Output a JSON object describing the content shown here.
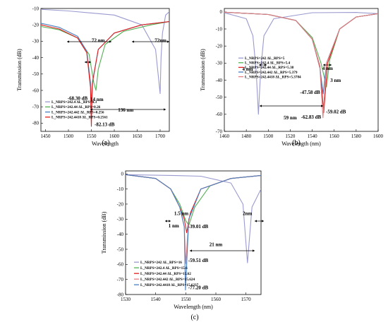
{
  "chart_data": [
    {
      "panel": "(a)",
      "type": "line",
      "xlabel": "Wavelength",
      "ylabel": "Transmission (dB)",
      "xlim": [
        1440,
        1720
      ],
      "ylim": [
        -85,
        -10
      ],
      "xticks": [
        1450,
        1500,
        1550,
        1600,
        1650,
        1700
      ],
      "yticks": [
        -10,
        -20,
        -30,
        -40,
        -50,
        -60,
        -70,
        -80
      ],
      "series": [
        {
          "name": "L_NRPS=242.4   ΔL_RPS=0.3",
          "color": "#9a9ad0",
          "x": [
            1440,
            1500,
            1600,
            1660,
            1690,
            1700,
            1702,
            1705,
            1712,
            1720
          ],
          "y": [
            -10.5,
            -11.5,
            -14,
            -20,
            -35,
            -62,
            -40,
            -25,
            -14,
            -12
          ]
        },
        {
          "name": "L_NRPS=242.44  ΔL_RPS=0.26",
          "color": "#55b055",
          "x": [
            1440,
            1480,
            1520,
            1545,
            1555,
            1560,
            1565,
            1580,
            1620,
            1680,
            1720
          ],
          "y": [
            -21,
            -23,
            -28,
            -38,
            -55,
            -60,
            -47,
            -32,
            -24,
            -20,
            -18
          ]
        },
        {
          "name": "L_NRPS=242.442 ΔL_RPS=0.256",
          "color": "#4a7ec0",
          "x": [
            1440,
            1480,
            1520,
            1540,
            1548,
            1550.5,
            1553,
            1565,
            1600,
            1660,
            1720
          ],
          "y": [
            -19,
            -21.5,
            -27,
            -36,
            -55,
            -68,
            -54,
            -35,
            -25,
            -20,
            -18
          ]
        },
        {
          "name": "L_NRPS=242.4418 ΔL_RPS=0.2561",
          "color": "#e02020",
          "x": [
            1440,
            1480,
            1520,
            1540,
            1548,
            1550,
            1552,
            1565,
            1600,
            1660,
            1720
          ],
          "y": [
            -20,
            -22.5,
            -28,
            -37,
            -58,
            -82,
            -56,
            -35,
            -25,
            -20,
            -18
          ]
        }
      ],
      "annotations": [
        "72 nm",
        "72nm",
        "14 nm",
        "136 nm",
        "-68.30 dB",
        "-82.13 dB"
      ]
    },
    {
      "panel": "(b)",
      "type": "line",
      "xlabel": "Wavelength (nm)",
      "ylabel": "Transmission (dB)",
      "xlim": [
        1460,
        1600
      ],
      "ylim": [
        -70,
        2
      ],
      "xticks": [
        1460,
        1480,
        1500,
        1520,
        1540,
        1560,
        1580,
        1600
      ],
      "yticks": [
        0,
        -10,
        -20,
        -30,
        -40,
        -50,
        -60,
        -70
      ],
      "series": [
        {
          "name": "L_NRPS=242    ΔL_RPS=5",
          "color": "#9a9ad0",
          "x": [
            1460,
            1480,
            1486,
            1489,
            1491,
            1493,
            1496,
            1505,
            1540,
            1580,
            1600
          ],
          "y": [
            -0.5,
            -4,
            -14,
            -35,
            -60,
            -35,
            -14,
            -4,
            -0.5,
            -0.3,
            -1
          ]
        },
        {
          "name": "L_NRPS=242.4  ΔL_RPS=5.4",
          "color": "#55b055",
          "x": [
            1460,
            1500,
            1525,
            1540,
            1548,
            1553,
            1556,
            1565,
            1580,
            1600
          ],
          "y": [
            -0.2,
            -1.5,
            -5,
            -15,
            -30,
            -44,
            -28,
            -10,
            -3,
            -1
          ]
        },
        {
          "name": "L_NRPS=242.44 ΔL_RPS=5.38",
          "color": "#e02020",
          "x": [
            1460,
            1500,
            1525,
            1540,
            1547,
            1550.5,
            1554,
            1565,
            1580,
            1600
          ],
          "y": [
            -0.2,
            -1.5,
            -5,
            -16,
            -32,
            -59,
            -30,
            -10,
            -3,
            -1
          ]
        },
        {
          "name": "L_NRPS=242.442 ΔL_RPS=5.379",
          "color": "#4a7ec0",
          "x": [
            1460,
            1500,
            1525,
            1540,
            1547,
            1550,
            1553,
            1565,
            1580,
            1600
          ],
          "y": [
            -0.2,
            -1.5,
            -5,
            -16,
            -33,
            -48,
            -30,
            -10,
            -3,
            -1
          ]
        },
        {
          "name": "L_NRPS=242.4418 ΔL_RPS=5.3784",
          "color": "#e08080",
          "x": [
            1460,
            1500,
            1525,
            1540,
            1547,
            1549.8,
            1553,
            1565,
            1580,
            1600
          ],
          "y": [
            -0.2,
            -1.5,
            -5,
            -16,
            -33,
            -62,
            -30,
            -10,
            -3,
            -1
          ]
        }
      ],
      "annotations": [
        "4 nm",
        "4 nm",
        "3 nm",
        "59 nm",
        "-47.58 dB",
        "-62.83 dB",
        "-59.02 dB"
      ]
    },
    {
      "panel": "(c)",
      "type": "line",
      "xlabel": "Wavelength (nm)",
      "ylabel": "Transmission (dB)",
      "xlim": [
        1530,
        1575
      ],
      "ylim": [
        -80,
        2
      ],
      "xticks": [
        1530,
        1540,
        1550,
        1560,
        1570
      ],
      "yticks": [
        0,
        -10,
        -20,
        -30,
        -40,
        -50,
        -60,
        -70,
        -80
      ],
      "series": [
        {
          "name": "L_NRPS=242    ΔL_RPS=16",
          "color": "#9a9ad0",
          "x": [
            1530,
            1545,
            1555,
            1565,
            1569,
            1570.5,
            1572,
            1575
          ],
          "y": [
            -0.5,
            -1,
            -1.5,
            -6,
            -20,
            -59,
            -22,
            -10
          ]
        },
        {
          "name": "L_NRPS=242.4  ΔL_RPS=15.6",
          "color": "#55b055",
          "x": [
            1530,
            1540,
            1545,
            1548,
            1550,
            1551,
            1553,
            1558,
            1565,
            1575
          ],
          "y": [
            -0.5,
            -3,
            -10,
            -20,
            -31,
            -34,
            -22,
            -8,
            -3,
            -1
          ]
        },
        {
          "name": "L_NRPS=242.44 ΔL_RPS=15.62",
          "color": "#e02020",
          "x": [
            1530,
            1540,
            1545,
            1548,
            1549.5,
            1550.3,
            1551.5,
            1555,
            1565,
            1575
          ],
          "y": [
            -0.5,
            -3,
            -10,
            -22,
            -30,
            -39,
            -26,
            -10,
            -3,
            -1
          ]
        },
        {
          "name": "L_NRPS=242.442 ΔL_RPS=15.624",
          "color": "#e08080",
          "x": [
            1530,
            1540,
            1545,
            1548,
            1549.5,
            1550,
            1551,
            1555,
            1565,
            1575
          ],
          "y": [
            -0.5,
            -3,
            -10,
            -22,
            -35,
            -59.5,
            -30,
            -10,
            -3,
            -1
          ]
        },
        {
          "name": "L_NRPS=242.4418 ΔL_RPS=15.6237",
          "color": "#4a7ec0",
          "x": [
            1530,
            1540,
            1545,
            1548,
            1549.5,
            1549.9,
            1551,
            1555,
            1565,
            1575
          ],
          "y": [
            -0.5,
            -3,
            -10,
            -22,
            -35,
            -77,
            -30,
            -10,
            -3,
            -1
          ]
        }
      ],
      "annotations": [
        "1.5 nm",
        "2nm",
        "1 nm",
        "-39.01 dB",
        "21 nm",
        "-59.51 dB",
        "-77.20 dB"
      ]
    }
  ]
}
